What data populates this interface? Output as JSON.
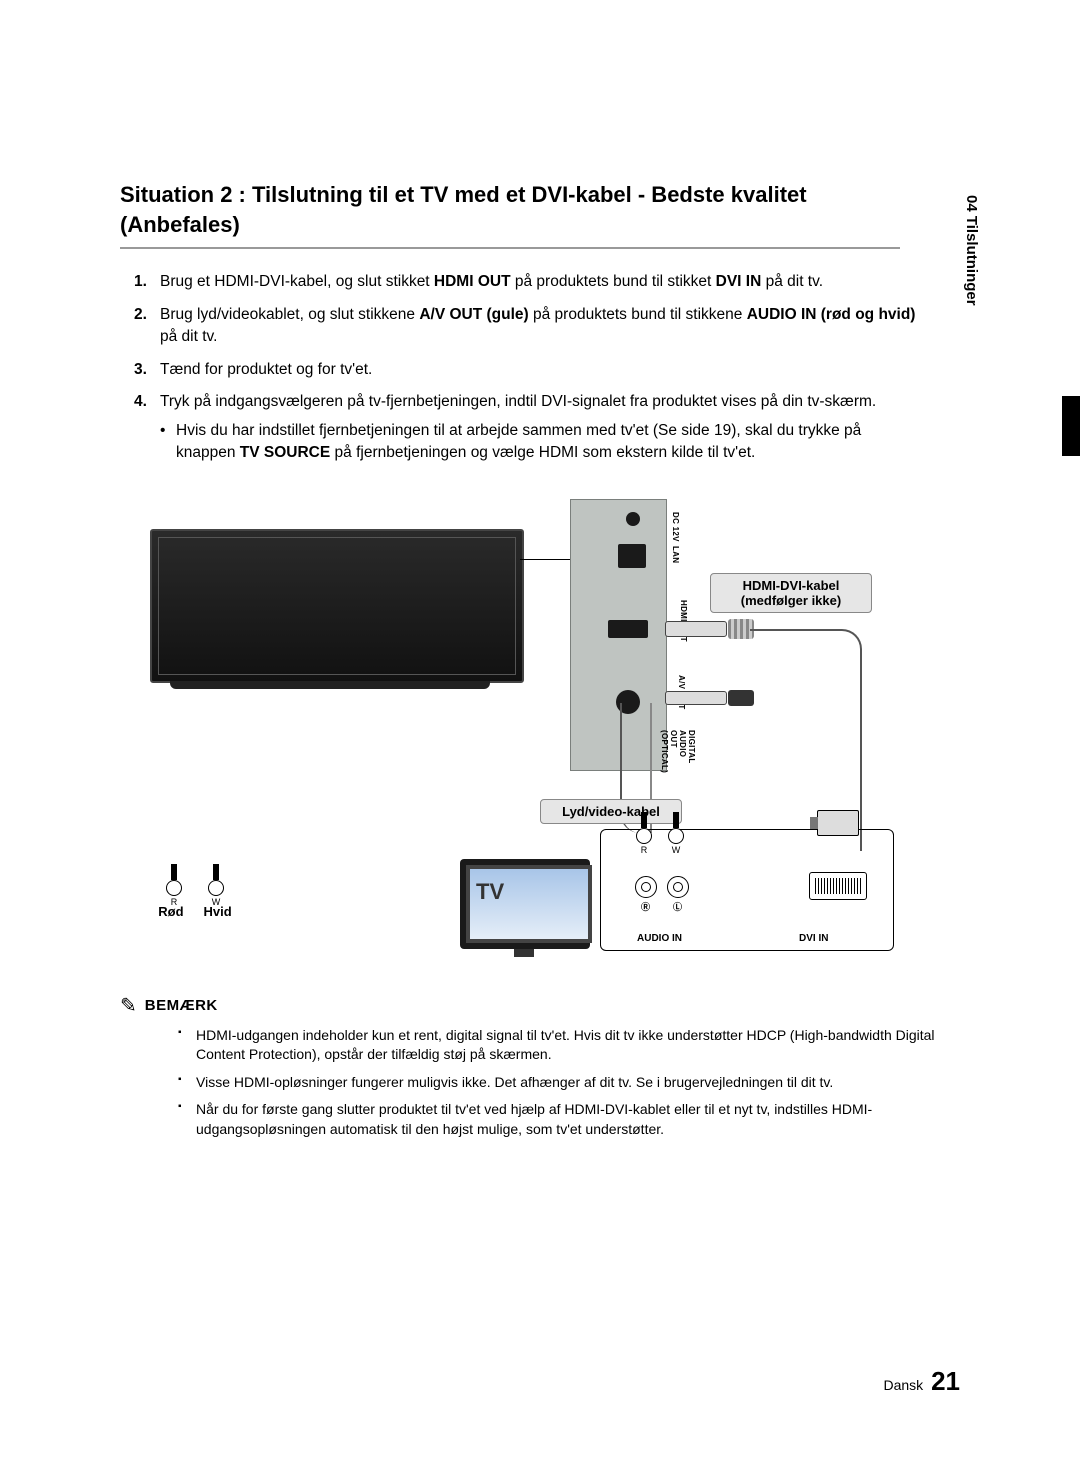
{
  "side_tab": "04  Tilslutninger",
  "title": "Situation 2 : Tilslutning til et TV med et DVI-kabel - Bedste kvalitet (Anbefales)",
  "steps": [
    {
      "num": "1.",
      "parts": [
        "Brug et HDMI-DVI-kabel, og slut stikket ",
        "HDMI OUT",
        " på produktets bund til stikket ",
        "DVI IN",
        " på dit tv."
      ]
    },
    {
      "num": "2.",
      "parts": [
        "Brug lyd/videokablet, og slut stikkene ",
        "A/V OUT (gule)",
        " på produktets bund til stikkene ",
        "AUDIO IN (rød og hvid)",
        " på dit tv."
      ]
    },
    {
      "num": "3.",
      "parts": [
        "Tænd for produktet og for tv'et."
      ]
    },
    {
      "num": "4.",
      "parts": [
        "Tryk på indgangsvælgeren på tv-fjernbetjeningen, indtil DVI-signalet fra produktet vises på din tv-skærm."
      ],
      "sub": [
        [
          "Hvis du har indstillet fjernbetjeningen til at arbejde sammen med tv'et (Se side 19), skal du trykke på knappen ",
          "TV SOURCE",
          " på fjernbetjeningen og vælge HDMI som ekstern kilde til tv'et."
        ]
      ]
    }
  ],
  "diagram": {
    "port_labels": {
      "dc": "DC 12V",
      "lan": "LAN",
      "hdmi": "HDMI OUT",
      "av": "A/V OUT",
      "opt": "DIGITAL AUDIO\nOUT (OPTICAL)"
    },
    "hdmi_info_l1": "HDMI-DVI-kabel",
    "hdmi_info_l2": "(medfølger ikke)",
    "av_info": "Lyd/video-kabel",
    "tv_label": "TV",
    "tv_ports": {
      "audio_in": "AUDIO IN",
      "dvi_in": "DVI IN",
      "r": "R",
      "w": "W",
      "circ_r": "Ⓡ",
      "circ_l": "Ⓛ"
    },
    "legend": {
      "r": "R",
      "w": "W",
      "red": "Rød",
      "white": "Hvid"
    }
  },
  "note_word": "BEMÆRK",
  "notes": [
    "HDMI-udgangen indeholder kun et rent, digital signal til tv'et. Hvis dit tv ikke understøtter HDCP (High-bandwidth Digital Content Protection), opstår der tilfældig støj på skærmen.",
    "Visse HDMI-opløsninger fungerer muligvis ikke. Det afhænger af dit tv. Se i brugervejledningen til dit tv.",
    "Når du for første gang slutter produktet til tv'et ved hjælp af HDMI-DVI-kablet eller til et nyt tv, indstilles HDMI-udgangsopløsningen automatisk til den højst mulige, som tv'et understøtter."
  ],
  "footer_lang": "Dansk",
  "footer_page": "21"
}
